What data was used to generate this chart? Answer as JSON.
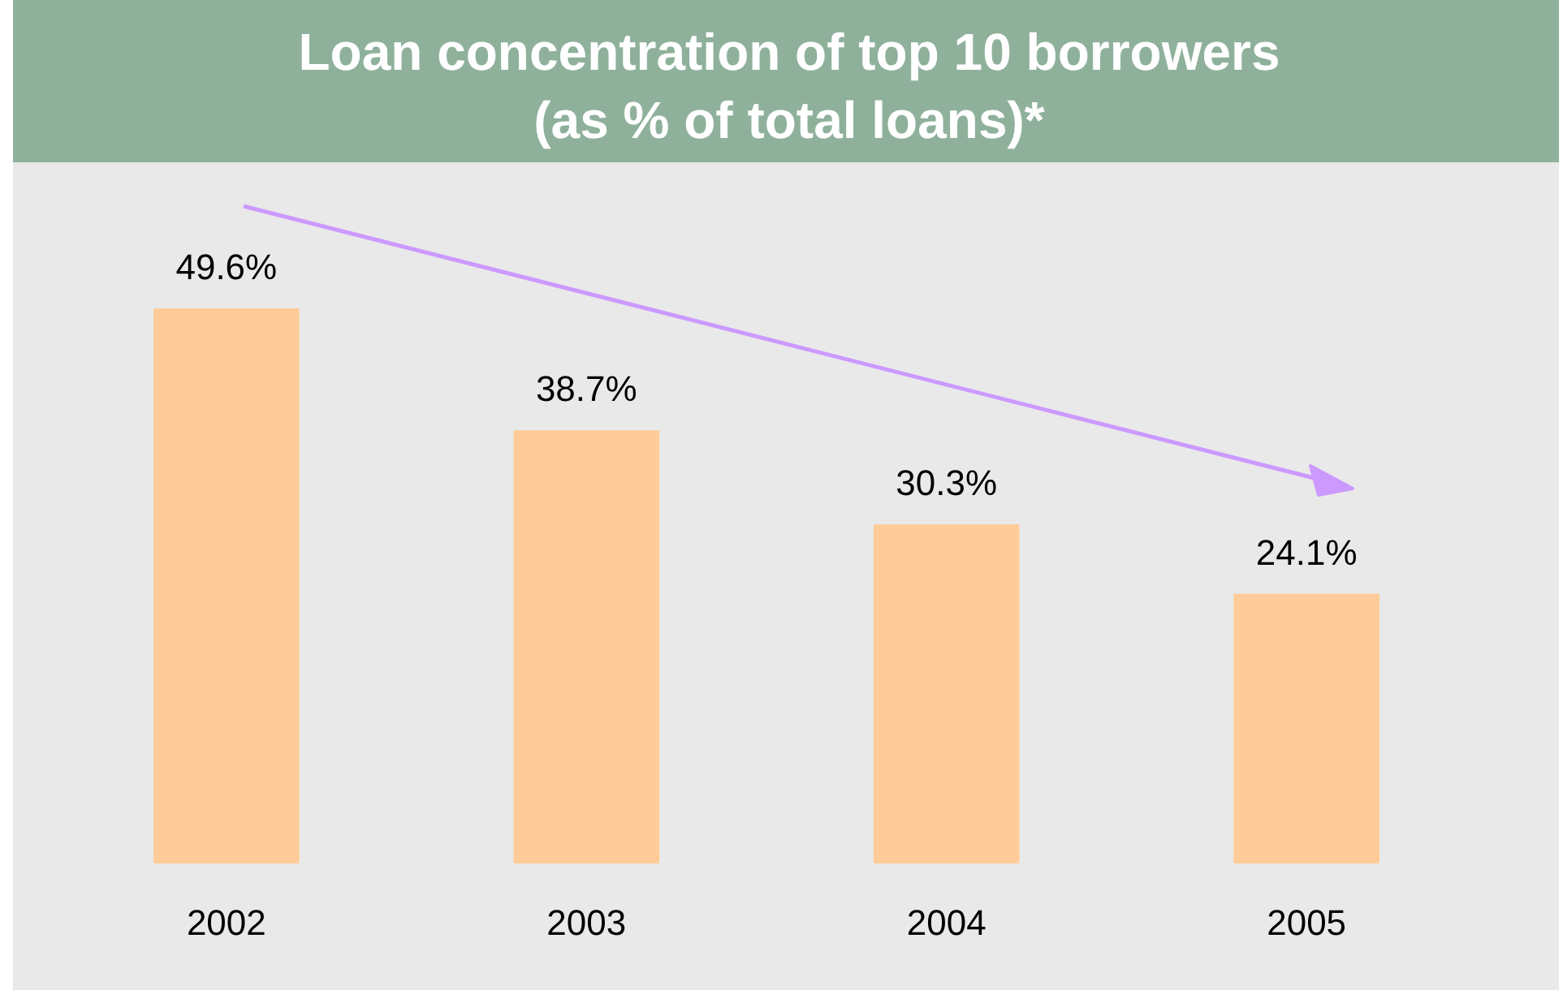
{
  "chart_data": {
    "type": "bar",
    "title": "Loan concentration of top 10 borrowers\n(as % of total loans)*",
    "categories": [
      "2002",
      "2003",
      "2004",
      "2005"
    ],
    "values": [
      49.6,
      38.7,
      30.3,
      24.1
    ],
    "value_labels": [
      "49.6%",
      "38.7%",
      "30.3%",
      "24.1%"
    ],
    "color": "#ffcc99"
  }
}
